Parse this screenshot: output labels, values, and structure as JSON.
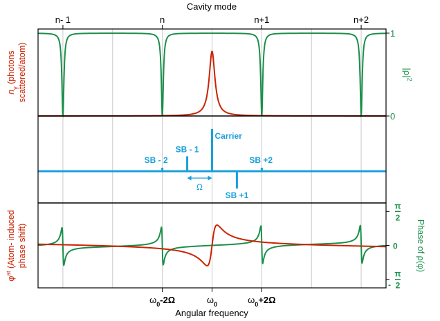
{
  "figure": {
    "top_axis_title": "Cavity mode",
    "bottom_axis_title": "Angular frequency"
  },
  "colors": {
    "red": "#cc2200",
    "green": "#1a8f4a",
    "blue": "#1aa0dc",
    "grid": "#c8c8c8",
    "axis": "#000000"
  },
  "chart_data": [
    {
      "id": "transmission",
      "type": "line",
      "xlim": [
        -1.75,
        1.75
      ],
      "top_ticks": [
        {
          "x": -1.5,
          "label": "n- 1"
        },
        {
          "x": -0.5,
          "label": "n"
        },
        {
          "x": 0.5,
          "label": "n+1"
        },
        {
          "x": 1.5,
          "label": "n+2"
        }
      ],
      "gridlines_x": [
        -1.5,
        -1.0,
        -0.5,
        0.0,
        0.5,
        1.0,
        1.5
      ],
      "y_left": {
        "title_italic": "n",
        "title_subscript": "γ",
        "title_rest": " (photons",
        "title_line2": "scattered/atom)",
        "ylim": [
          0,
          1.05
        ]
      },
      "y_right": {
        "title": "|ρ|",
        "title_sup": "2",
        "ylim": [
          0,
          1.05
        ],
        "ticks": [
          {
            "y": 0,
            "label": "0"
          },
          {
            "y": 1,
            "label": "1"
          }
        ]
      },
      "series": [
        {
          "color": "green",
          "role": "cavity-transmission",
          "dips_at": [
            -1.5,
            -0.5,
            0.5,
            1.5
          ],
          "baseline": 1.0,
          "min": 0.0
        },
        {
          "color": "red",
          "role": "atom-scattering",
          "peak_at": 0.0,
          "peak": 0.78
        }
      ]
    },
    {
      "id": "spectrum",
      "type": "bar",
      "xlim": [
        -1.75,
        1.75
      ],
      "baseline": 0,
      "ylim": [
        -1,
        1
      ],
      "lines": [
        {
          "x": 0.0,
          "value": 0.85,
          "label": "Carrier"
        },
        {
          "x": -0.25,
          "value": 0.3,
          "label": "SB - 1"
        },
        {
          "x": 0.25,
          "value": -0.35,
          "label": "SB +1"
        },
        {
          "x": -0.5,
          "value": 0.07,
          "label": "SB - 2"
        },
        {
          "x": 0.5,
          "value": 0.07,
          "label": "SB +2"
        },
        {
          "x": -0.75,
          "value": 0.02,
          "label": ""
        },
        {
          "x": 0.75,
          "value": 0.02,
          "label": ""
        }
      ],
      "spacing_label": "Ω",
      "spacing_from": -0.25,
      "spacing_to": 0.0
    },
    {
      "id": "phase",
      "type": "line",
      "xlim": [
        -1.75,
        1.75
      ],
      "bottom_ticks": [
        {
          "x": -0.5,
          "label_main": "ω",
          "label_sub": "0",
          "label_rest": "-2Ω"
        },
        {
          "x": 0.0,
          "label_main": "ω",
          "label_sub": "0",
          "label_rest": ""
        },
        {
          "x": 0.5,
          "label_main": "ω",
          "label_sub": "0",
          "label_rest": "+2Ω"
        }
      ],
      "y_left": {
        "title_main": "φ",
        "title_sup": "at",
        "title_rest": " (Atom- induced",
        "title_line2": "phase shift)",
        "ylim": [
          -1.25,
          1.25
        ]
      },
      "y_right": {
        "title": "Phase of ρ(φ)",
        "ylim": [
          -1.25,
          1.25
        ],
        "ticks": [
          {
            "y": 1,
            "num": "π",
            "den": "2",
            "sign": ""
          },
          {
            "y": 0,
            "num": "0",
            "den": "",
            "sign": ""
          },
          {
            "y": -1,
            "num": "π",
            "den": "2",
            "sign": "-"
          }
        ]
      },
      "series": [
        {
          "color": "green",
          "role": "cavity-phase",
          "jumps_at": [
            -1.5,
            -0.5,
            0.5,
            1.5
          ]
        },
        {
          "color": "red",
          "role": "atom-phase",
          "dispersive_at": 0.0
        }
      ]
    }
  ]
}
